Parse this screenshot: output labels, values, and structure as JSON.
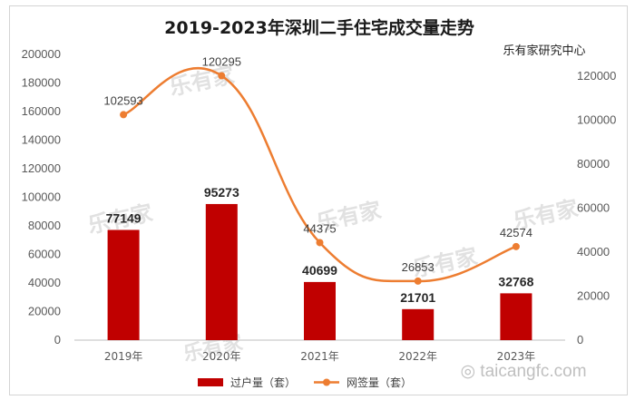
{
  "chart_data": {
    "type": "bar",
    "title": "2019-2023年深圳二手住宅成交量走势",
    "source": "乐有家研究中心",
    "categories": [
      "2019年",
      "2020年",
      "2021年",
      "2022年",
      "2023年"
    ],
    "series": [
      {
        "name": "过户量（套）",
        "type": "bar",
        "axis": "left",
        "color": "#c00000",
        "values": [
          77149,
          95273,
          40699,
          21701,
          32768
        ]
      },
      {
        "name": "网签量（套）",
        "type": "line",
        "smooth": true,
        "axis": "right",
        "color": "#ed7d31",
        "values": [
          102593,
          120295,
          44375,
          26853,
          42574
        ]
      }
    ],
    "y_left": {
      "range": [
        0,
        200000
      ],
      "ticks": [
        "0",
        "20000",
        "40000",
        "60000",
        "80000",
        "100000",
        "120000",
        "140000",
        "160000",
        "180000",
        "200000"
      ]
    },
    "y_right": {
      "range": [
        0,
        130000
      ],
      "ticks": [
        "0",
        "20000",
        "40000",
        "60000",
        "80000",
        "100000",
        "120000"
      ]
    },
    "grid": false,
    "legend": "bottom"
  },
  "watermark": {
    "logo": "乐有家",
    "site": "◎ taicangfc.com"
  }
}
